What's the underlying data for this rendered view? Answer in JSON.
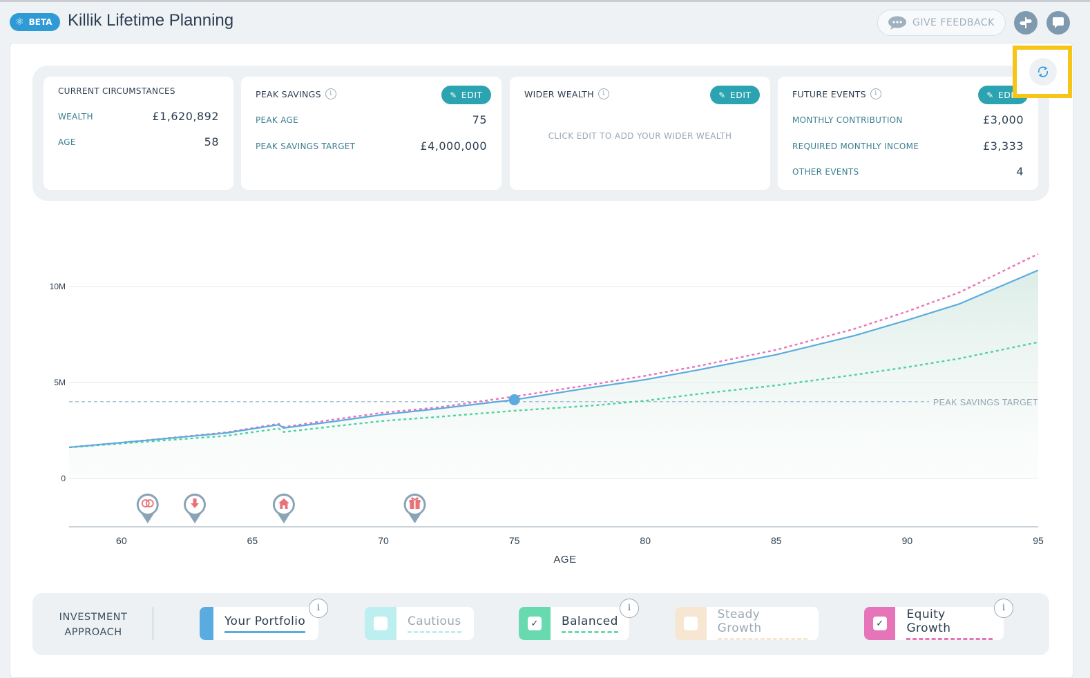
{
  "header": {
    "beta_label": "BETA",
    "app_title": "Killik Lifetime Planning",
    "feedback_label": "GIVE FEEDBACK"
  },
  "cards": {
    "current": {
      "title": "CURRENT CIRCUMSTANCES",
      "wealth_label": "WEALTH",
      "wealth_value": "£1,620,892",
      "age_label": "AGE",
      "age_value": "58"
    },
    "peak": {
      "title": "PEAK SAVINGS",
      "edit_label": "EDIT",
      "peak_age_label": "PEAK AGE",
      "peak_age_value": "75",
      "target_label": "PEAK SAVINGS TARGET",
      "target_value": "£4,000,000"
    },
    "wider": {
      "title": "WIDER WEALTH",
      "edit_label": "EDIT",
      "placeholder": "CLICK EDIT TO ADD YOUR WIDER WEALTH"
    },
    "future": {
      "title": "FUTURE EVENTS",
      "edit_label": "EDIT",
      "monthly_contribution_label": "MONTHLY CONTRIBUTION",
      "monthly_contribution_value": "£3,000",
      "required_income_label": "REQUIRED MONTHLY INCOME",
      "required_income_value": "£3,333",
      "other_events_label": "OTHER EVENTS",
      "other_events_value": "4"
    }
  },
  "chart_data": {
    "type": "line",
    "xlabel": "AGE",
    "ylabel": "",
    "xlim": [
      58,
      95
    ],
    "ylim": [
      0,
      10000000
    ],
    "x_ticks": [
      60,
      65,
      70,
      75,
      80,
      85,
      90,
      95
    ],
    "y_ticks": [
      0,
      5000000,
      10000000
    ],
    "y_tick_labels": [
      "0",
      "5M",
      "10M"
    ],
    "grid": true,
    "peak_savings_target": {
      "label": "PEAK SAVINGS TARGET",
      "value": 4000000
    },
    "highlight_point": {
      "x": 75,
      "y": 4100000
    },
    "series": [
      {
        "name": "Your Portfolio",
        "color": "#5aace0",
        "style": "solid",
        "fill": true,
        "points": [
          [
            58,
            1620000
          ],
          [
            61,
            1990000
          ],
          [
            64,
            2370000
          ],
          [
            66,
            2800000
          ],
          [
            66.2,
            2630000
          ],
          [
            68,
            2950000
          ],
          [
            70,
            3330000
          ],
          [
            72,
            3620000
          ],
          [
            75,
            4100000
          ],
          [
            78,
            4750000
          ],
          [
            80,
            5150000
          ],
          [
            82,
            5650000
          ],
          [
            85,
            6450000
          ],
          [
            88,
            7450000
          ],
          [
            90,
            8250000
          ],
          [
            92,
            9100000
          ],
          [
            95,
            10850000
          ]
        ]
      },
      {
        "name": "Equity Growth",
        "color": "#e874b8",
        "style": "dashed",
        "fill": false,
        "points": [
          [
            58,
            1620000
          ],
          [
            61,
            2000000
          ],
          [
            64,
            2400000
          ],
          [
            66,
            2850000
          ],
          [
            66.2,
            2680000
          ],
          [
            68,
            3050000
          ],
          [
            70,
            3430000
          ],
          [
            72,
            3690000
          ],
          [
            75,
            4270000
          ],
          [
            78,
            4900000
          ],
          [
            80,
            5350000
          ],
          [
            82,
            5850000
          ],
          [
            85,
            6700000
          ],
          [
            88,
            7800000
          ],
          [
            90,
            8700000
          ],
          [
            92,
            9700000
          ],
          [
            95,
            11700000
          ]
        ]
      },
      {
        "name": "Balanced",
        "color": "#4fd2a0",
        "style": "dashed",
        "fill": false,
        "points": [
          [
            58,
            1620000
          ],
          [
            61,
            1920000
          ],
          [
            64,
            2220000
          ],
          [
            66,
            2600000
          ],
          [
            66.2,
            2420000
          ],
          [
            68,
            2700000
          ],
          [
            70,
            3000000
          ],
          [
            72,
            3200000
          ],
          [
            75,
            3530000
          ],
          [
            78,
            3800000
          ],
          [
            80,
            4050000
          ],
          [
            82,
            4400000
          ],
          [
            85,
            4850000
          ],
          [
            88,
            5400000
          ],
          [
            90,
            5800000
          ],
          [
            92,
            6250000
          ],
          [
            95,
            7100000
          ]
        ]
      }
    ],
    "events": [
      {
        "age": 61,
        "icon": "rings-icon"
      },
      {
        "age": 62.8,
        "icon": "arrow-down-icon"
      },
      {
        "age": 66.2,
        "icon": "house-icon"
      },
      {
        "age": 71.2,
        "icon": "gift-icon"
      }
    ]
  },
  "investment": {
    "label_line1": "INVESTMENT",
    "label_line2": "APPROACH",
    "options": [
      {
        "label": "Your Portfolio",
        "color": "#5aace0",
        "checked": null
      },
      {
        "label": "Cautious",
        "color": "#bdeef0",
        "checked": false
      },
      {
        "label": "Balanced",
        "color": "#69dab0",
        "checked": true
      },
      {
        "label": "Steady Growth",
        "color": "#f7e6d2",
        "checked": false
      },
      {
        "label": "Equity Growth",
        "color": "#e674b8",
        "checked": true
      }
    ],
    "info_glyph": "i"
  }
}
